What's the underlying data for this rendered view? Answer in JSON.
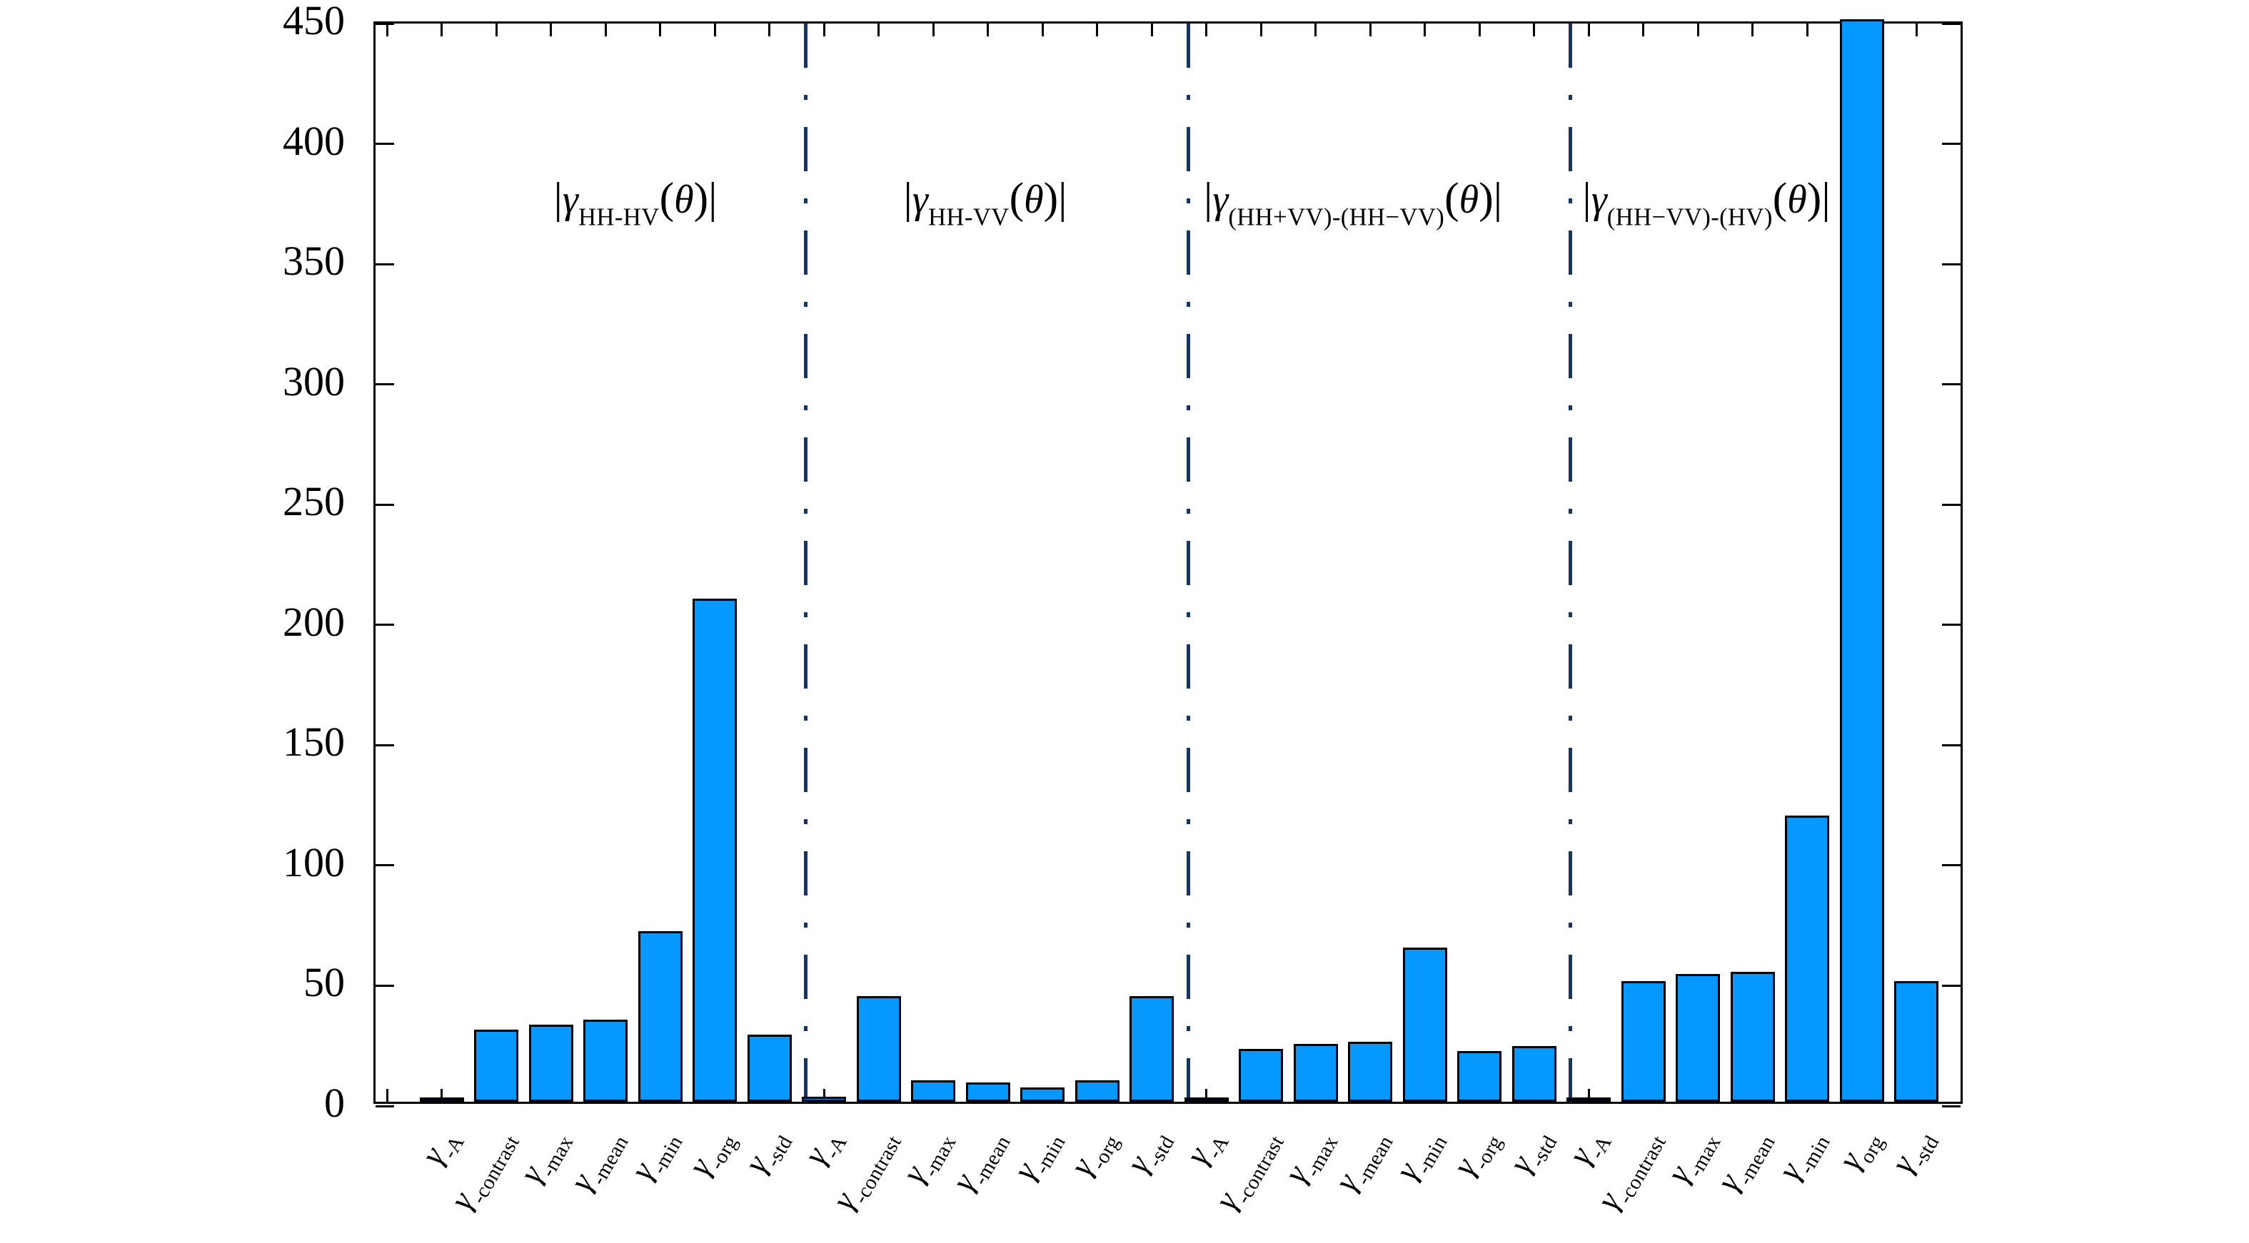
{
  "chart_data": {
    "type": "bar",
    "title": "",
    "xlabel": "",
    "ylabel": "",
    "ylim": [
      0,
      450
    ],
    "ytick_step": 50,
    "ytick_labels": [
      "0",
      "50",
      "100",
      "150",
      "200",
      "250",
      "300",
      "350",
      "400",
      "450"
    ],
    "grid": false,
    "legend": "none",
    "bar_color": "#0599ff",
    "bar_border_color": "#000008",
    "separator_color": "#16355f",
    "axis_color": "#000000",
    "categories_note": "each tick label renders as italic gamma + subscript",
    "gamma_symbol": "γ",
    "groups": [
      {
        "annotation_prefix": "|γ",
        "annotation_sub": "HH-HV",
        "annotation_suffix": "(θ)|",
        "category_subs": [
          "-A",
          "-contrast",
          "-max",
          "-mean",
          "-min",
          "-org",
          "-std"
        ],
        "values": [
          1,
          30,
          32,
          34,
          71,
          209,
          28
        ]
      },
      {
        "annotation_prefix": "|γ",
        "annotation_sub": "HH-VV",
        "annotation_suffix": "(θ)|",
        "category_subs": [
          "-A",
          "-contrast",
          "-max",
          "-mean",
          "-min",
          "-org",
          "-std"
        ],
        "values": [
          2,
          44,
          9,
          8,
          6,
          9,
          44
        ]
      },
      {
        "annotation_prefix": "|γ",
        "annotation_sub": "(HH+VV)-(HH−VV)",
        "annotation_suffix": "(θ)|",
        "category_subs": [
          "-A",
          "-contrast",
          "-max",
          "-mean",
          "-min",
          "-org",
          "-std"
        ],
        "values": [
          1,
          22,
          24,
          25,
          64,
          21,
          23
        ]
      },
      {
        "annotation_prefix": "|γ",
        "annotation_sub": "(HH−VV)-(HV)",
        "annotation_suffix": "(θ)|",
        "category_subs": [
          "-A",
          "-contrast",
          "-max",
          "-mean",
          "-min",
          "org",
          "-std"
        ],
        "values": [
          1,
          50,
          53,
          54,
          119,
          450,
          50
        ]
      }
    ]
  }
}
